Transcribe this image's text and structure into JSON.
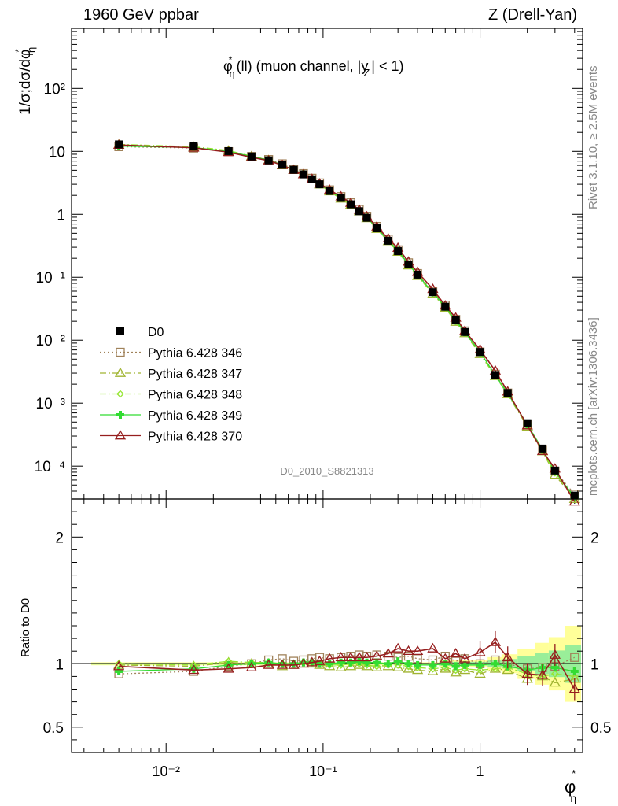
{
  "header": {
    "left": "1960 GeV ppbar",
    "right": "Z (Drell-Yan)"
  },
  "side_labels": {
    "rivet": "Rivet 3.1.10, ≥ 2.5M events",
    "mcplots": "mcplots.cern.ch [arXiv:1306.3436]"
  },
  "chart_data": {
    "type": "line",
    "title_main": "φ",
    "title_main_sup": "*",
    "title_main_sub": "η",
    "title_rest": "(ll) (muon channel, |y",
    "title_rest_sub": "Z",
    "title_end": "| < 1)",
    "ylabel": "1/σ;dσ/dφ",
    "ylabel_sup": "*",
    "ylabel_sub": "η",
    "ratio_ylabel": "Ratio to D0",
    "xlabel": "φ",
    "xlabel_sup": "*",
    "xlabel_sub": "η",
    "analysis_id": "D0_2010_S8821313",
    "xscale": "log",
    "yscale": "log",
    "xlim": [
      0.0025,
      4.5
    ],
    "ylim": [
      3e-05,
      900
    ],
    "ratio_ylim": [
      0.3,
      2.3
    ],
    "xtick_labels": [
      "10⁻²",
      "10⁻¹",
      "1"
    ],
    "ytick_labels": [
      "10⁻⁴",
      "10⁻³",
      "10⁻²",
      "10⁻¹",
      "1",
      "10",
      "10²"
    ],
    "ratio_ytick_labels": [
      "0.5",
      "1",
      "2"
    ],
    "legend_position": "left",
    "x": [
      0.005,
      0.015,
      0.025,
      0.035,
      0.045,
      0.055,
      0.065,
      0.075,
      0.085,
      0.095,
      0.11,
      0.13,
      0.15,
      0.17,
      0.19,
      0.22,
      0.26,
      0.3,
      0.35,
      0.4,
      0.5,
      0.6,
      0.7,
      0.8,
      1.0,
      1.25,
      1.5,
      2.0,
      2.5,
      3.0,
      4.0
    ],
    "data": {
      "name": "D0",
      "values": [
        12.9,
        12.0,
        10.1,
        8.3,
        7.2,
        6.1,
        5.1,
        4.3,
        3.6,
        3.0,
        2.35,
        1.82,
        1.44,
        1.12,
        0.88,
        0.6,
        0.38,
        0.26,
        0.16,
        0.11,
        0.058,
        0.034,
        0.021,
        0.0135,
        0.0065,
        0.0028,
        0.00145,
        0.00048,
        0.00019,
        8.5e-05,
        3.4e-05
      ]
    },
    "series": [
      {
        "name": "Pythia 6.428 346",
        "color": "#a0825a",
        "style": "dotted",
        "marker": "square",
        "ratio": [
          0.92,
          0.94,
          0.98,
          1.0,
          1.03,
          1.04,
          1.02,
          1.03,
          1.04,
          1.05,
          1.04,
          1.05,
          1.06,
          1.07,
          1.06,
          1.07,
          1.06,
          1.05,
          1.06,
          1.04,
          1.03,
          1.06,
          1.02,
          1.04,
          1.0,
          1.03,
          1.0,
          0.96,
          0.97,
          0.98,
          1.05
        ]
      },
      {
        "name": "Pythia 6.428 347",
        "color": "#a0b432",
        "style": "dashdot",
        "marker": "triangle",
        "ratio": [
          0.99,
          0.98,
          1.01,
          1.0,
          1.0,
          0.98,
          0.99,
          1.0,
          1.0,
          0.99,
          0.98,
          0.97,
          0.98,
          0.99,
          0.98,
          0.97,
          0.98,
          0.97,
          0.96,
          0.95,
          0.94,
          0.96,
          0.93,
          0.95,
          0.92,
          0.96,
          0.95,
          0.88,
          0.9,
          0.85,
          0.88
        ]
      },
      {
        "name": "Pythia 6.428 348",
        "color": "#96e632",
        "style": "dashdot",
        "marker": "diamond",
        "ratio": [
          1.0,
          0.99,
          1.02,
          1.01,
          1.01,
          1.0,
          1.0,
          1.01,
          1.01,
          1.0,
          0.99,
          0.99,
          1.0,
          1.0,
          0.99,
          0.98,
          0.99,
          0.99,
          0.98,
          0.97,
          0.96,
          0.97,
          0.95,
          0.96,
          0.95,
          0.96,
          0.97,
          0.92,
          0.9,
          0.92,
          0.9
        ]
      },
      {
        "name": "Pythia 6.428 349",
        "color": "#32dc32",
        "style": "solid",
        "marker": "cross",
        "ratio": [
          0.94,
          0.96,
          0.99,
          1.0,
          1.01,
          1.0,
          1.0,
          1.01,
          1.01,
          1.0,
          1.0,
          1.01,
          1.01,
          1.02,
          1.01,
          1.01,
          1.0,
          1.02,
          1.0,
          0.99,
          0.99,
          1.0,
          0.98,
          0.99,
          0.99,
          1.0,
          0.98,
          0.95,
          0.97,
          0.97,
          0.94
        ]
      },
      {
        "name": "Pythia 6.428 370",
        "color": "#961e1e",
        "style": "solid",
        "marker": "triangle",
        "ratio": [
          0.98,
          0.95,
          0.96,
          0.97,
          0.99,
          0.99,
          0.99,
          1.0,
          1.01,
          1.02,
          1.04,
          1.05,
          1.05,
          1.05,
          1.05,
          1.06,
          1.08,
          1.12,
          1.1,
          1.1,
          1.12,
          1.04,
          1.08,
          1.04,
          1.09,
          1.17,
          1.05,
          0.92,
          0.91,
          1.07,
          0.8
        ]
      }
    ]
  }
}
